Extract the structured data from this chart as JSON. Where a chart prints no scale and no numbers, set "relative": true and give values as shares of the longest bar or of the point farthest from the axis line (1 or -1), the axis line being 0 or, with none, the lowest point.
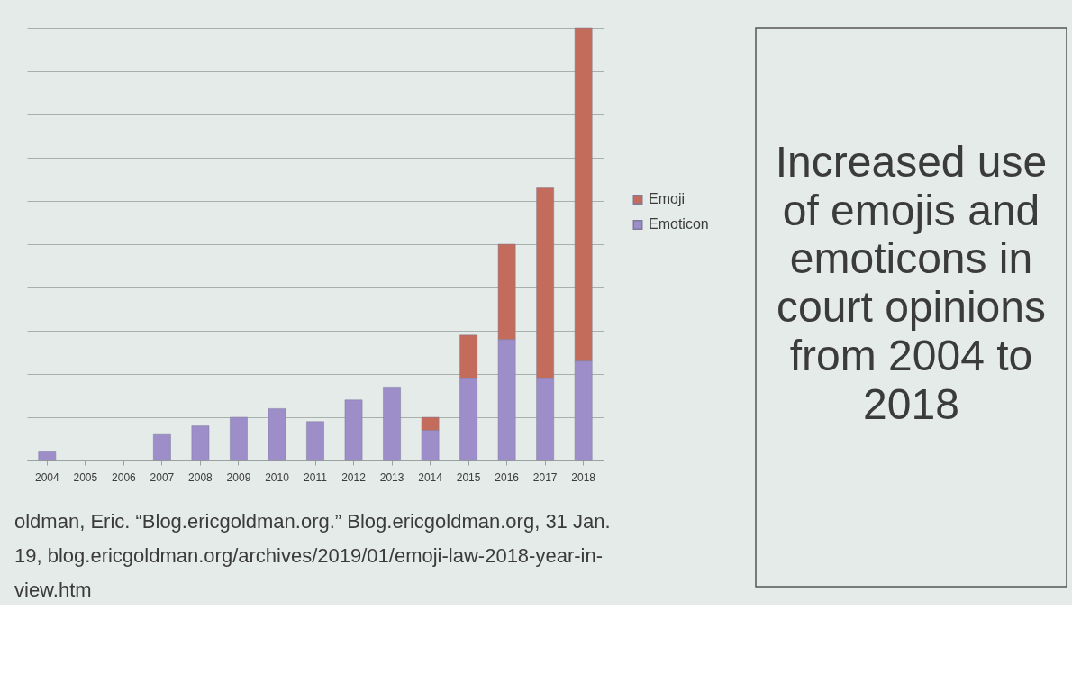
{
  "chart_data": [
    {
      "type": "bar",
      "stacked": true,
      "relative": true,
      "grid": "y",
      "legend": "right",
      "categories": [
        "2004",
        "2005",
        "2006",
        "2007",
        "2008",
        "2009",
        "2010",
        "2011",
        "2012",
        "2013",
        "2014",
        "2015",
        "2016",
        "2017",
        "2018"
      ],
      "series": [
        {
          "name": "Emoticon",
          "color": "#9d8ec9",
          "values": [
            0.02,
            0,
            0,
            0.06,
            0.08,
            0.1,
            0.12,
            0.09,
            0.14,
            0.17,
            0.07,
            0.19,
            0.28,
            0.19,
            0.23
          ]
        },
        {
          "name": "Emoji",
          "color": "#c46c5c",
          "values": [
            0,
            0,
            0,
            0,
            0,
            0,
            0,
            0,
            0,
            0,
            0.03,
            0.1,
            0.22,
            0.44,
            0.77
          ]
        }
      ],
      "annotations": [
        "oldman, Eric. “Blog.ericgoldman.org.” Blog.ericgoldman.org, 31 Jan.",
        "19, blog.ericgoldman.org/archives/2019/01/emoji-law-2018-year-in-",
        "view.htm"
      ]
    },
    {
      "type": "other",
      "title": "Increased use of emojis and emoticons in court opinions from 2004 to 2018"
    }
  ]
}
